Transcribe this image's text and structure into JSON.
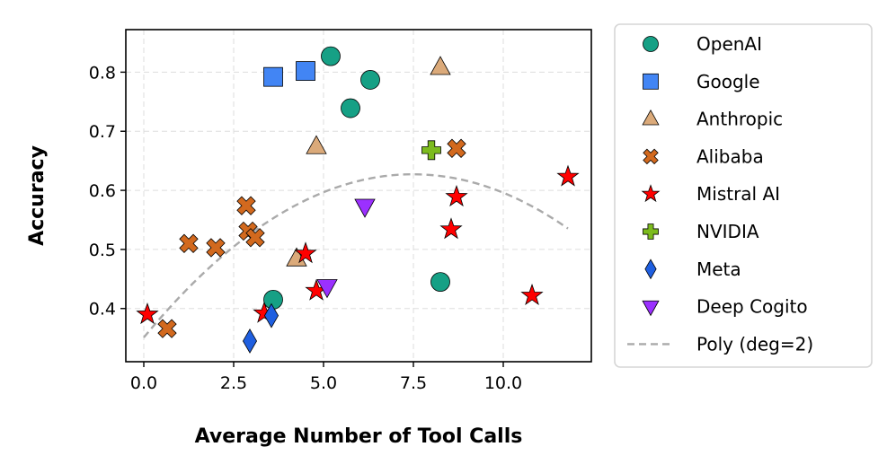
{
  "chart_data": {
    "type": "scatter",
    "xlabel": "Average Number of Tool Calls",
    "ylabel": "Accuracy",
    "xlim": [
      -0.5,
      12.45
    ],
    "ylim": [
      0.31,
      0.872
    ],
    "xticks": [
      0.0,
      2.5,
      5.0,
      7.5,
      10.0
    ],
    "xtick_labels": [
      "0.0",
      "2.5",
      "5.0",
      "7.5",
      "10.0"
    ],
    "yticks": [
      0.4,
      0.5,
      0.6,
      0.7,
      0.8
    ],
    "ytick_labels": [
      "0.4",
      "0.5",
      "0.6",
      "0.7",
      "0.8"
    ],
    "grid": true,
    "legend_position": "outside-right",
    "series": [
      {
        "name": "OpenAI",
        "marker": "circle",
        "color": "#16a085",
        "points": [
          [
            5.2,
            0.827
          ],
          [
            6.3,
            0.787
          ],
          [
            5.75,
            0.739
          ],
          [
            3.6,
            0.415
          ],
          [
            8.25,
            0.445
          ]
        ]
      },
      {
        "name": "Google",
        "marker": "square",
        "color": "#4285f4",
        "points": [
          [
            3.6,
            0.792
          ],
          [
            4.5,
            0.802
          ]
        ]
      },
      {
        "name": "Anthropic",
        "marker": "triangle-up",
        "color": "#dbaa7a",
        "points": [
          [
            8.25,
            0.808
          ],
          [
            4.8,
            0.674
          ],
          [
            4.25,
            0.484
          ]
        ]
      },
      {
        "name": "Alibaba",
        "marker": "x",
        "color": "#d2691e",
        "points": [
          [
            8.7,
            0.671
          ],
          [
            2.85,
            0.574
          ],
          [
            2.9,
            0.531
          ],
          [
            3.1,
            0.52
          ],
          [
            1.25,
            0.51
          ],
          [
            2.0,
            0.503
          ],
          [
            0.65,
            0.366
          ]
        ]
      },
      {
        "name": "Mistral AI",
        "marker": "star",
        "color": "#ff0000",
        "points": [
          [
            11.8,
            0.623
          ],
          [
            8.7,
            0.589
          ],
          [
            8.55,
            0.534
          ],
          [
            4.5,
            0.493
          ],
          [
            4.8,
            0.43
          ],
          [
            10.8,
            0.422
          ],
          [
            3.35,
            0.392
          ],
          [
            0.1,
            0.39
          ]
        ]
      },
      {
        "name": "NVIDIA",
        "marker": "plus",
        "color": "#7cbb1e",
        "points": [
          [
            8.0,
            0.668
          ]
        ]
      },
      {
        "name": "Meta",
        "marker": "diamond",
        "color": "#1f5fe0",
        "points": [
          [
            3.55,
            0.388
          ],
          [
            2.95,
            0.345
          ]
        ]
      },
      {
        "name": "Deep Cogito",
        "marker": "triangle-down",
        "color": "#9b30ff",
        "points": [
          [
            6.15,
            0.573
          ],
          [
            5.1,
            0.437
          ]
        ]
      }
    ],
    "fit": {
      "name": "Poly (deg=2)",
      "degree": 2,
      "color": "#aaaaaa",
      "coefficients": [
        -0.00493,
        0.0738,
        0.351
      ],
      "x_range": [
        0.0,
        11.8
      ]
    }
  }
}
